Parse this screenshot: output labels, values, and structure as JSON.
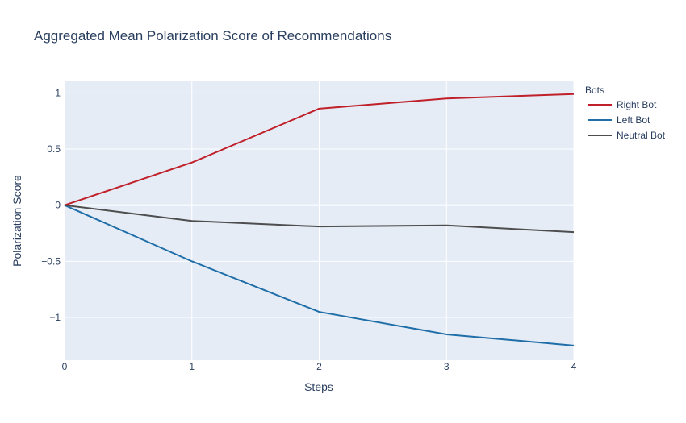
{
  "chart_data": {
    "type": "line",
    "title": "Aggregated Mean Polarization Score of Recommendations",
    "xlabel": "Steps",
    "ylabel": "Polarization Score",
    "x": [
      0,
      1,
      2,
      3,
      4
    ],
    "xticks": [
      "0",
      "1",
      "2",
      "3",
      "4"
    ],
    "xlim": [
      0,
      4
    ],
    "ylim": [
      -1.38,
      1.11
    ],
    "yticks": [
      {
        "value": 1,
        "label": "1"
      },
      {
        "value": 0.5,
        "label": "0.5"
      },
      {
        "value": 0,
        "label": "0"
      },
      {
        "value": -0.5,
        "label": "−0.5"
      },
      {
        "value": -1,
        "label": "−1"
      }
    ],
    "grid": true,
    "legend": {
      "title": "Bots",
      "placement": "top-right, outside plot"
    },
    "series": [
      {
        "name": "Right Bot",
        "color": "#c0202a",
        "values": [
          0,
          0.38,
          0.86,
          0.95,
          0.99
        ]
      },
      {
        "name": "Left Bot",
        "color": "#1f6ea8",
        "values": [
          0,
          -0.5,
          -0.95,
          -1.15,
          -1.25
        ]
      },
      {
        "name": "Neutral Bot",
        "color": "#4d4d4d",
        "values": [
          0,
          -0.14,
          -0.19,
          -0.18,
          -0.24
        ]
      }
    ],
    "plot_background": "#e5ecf6",
    "gridline_color": "#ffffff"
  }
}
